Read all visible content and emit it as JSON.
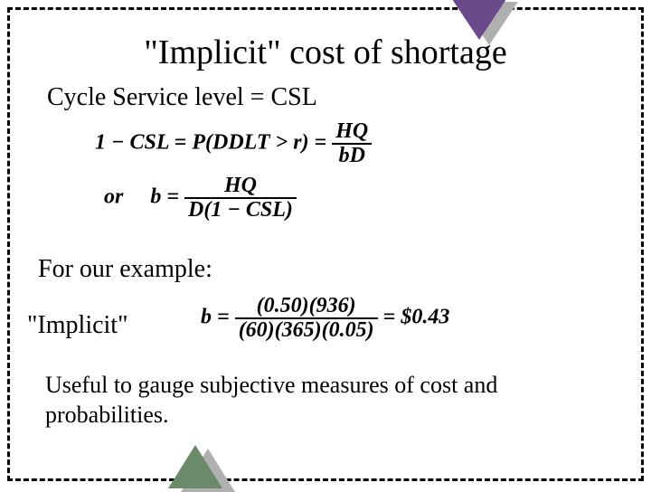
{
  "title": "\"Implicit\" cost of shortage",
  "line_csl": "Cycle Service level = CSL",
  "formula1": {
    "lhs": "1 − CSL = P(DDLT > r) =",
    "num": "HQ",
    "den": "bD"
  },
  "formula2": {
    "lhs_prefix": "or",
    "lhs": "b =",
    "num": "HQ",
    "den": "D(1 − CSL)"
  },
  "example_label": "For our example:",
  "implicit_label": "\"Implicit\"",
  "formula3": {
    "lhs": "b =",
    "num": "(0.50)(936)",
    "den": "(60)(365)(0.05)",
    "rhs": "= $0.43"
  },
  "closing": "Useful to gauge subjective measures of cost and probabilities.",
  "colors": {
    "top_triangle": "#6a4a8a",
    "bottom_triangle": "#6a8a6a",
    "shadow": "#b0b0b0",
    "border": "#000000"
  }
}
